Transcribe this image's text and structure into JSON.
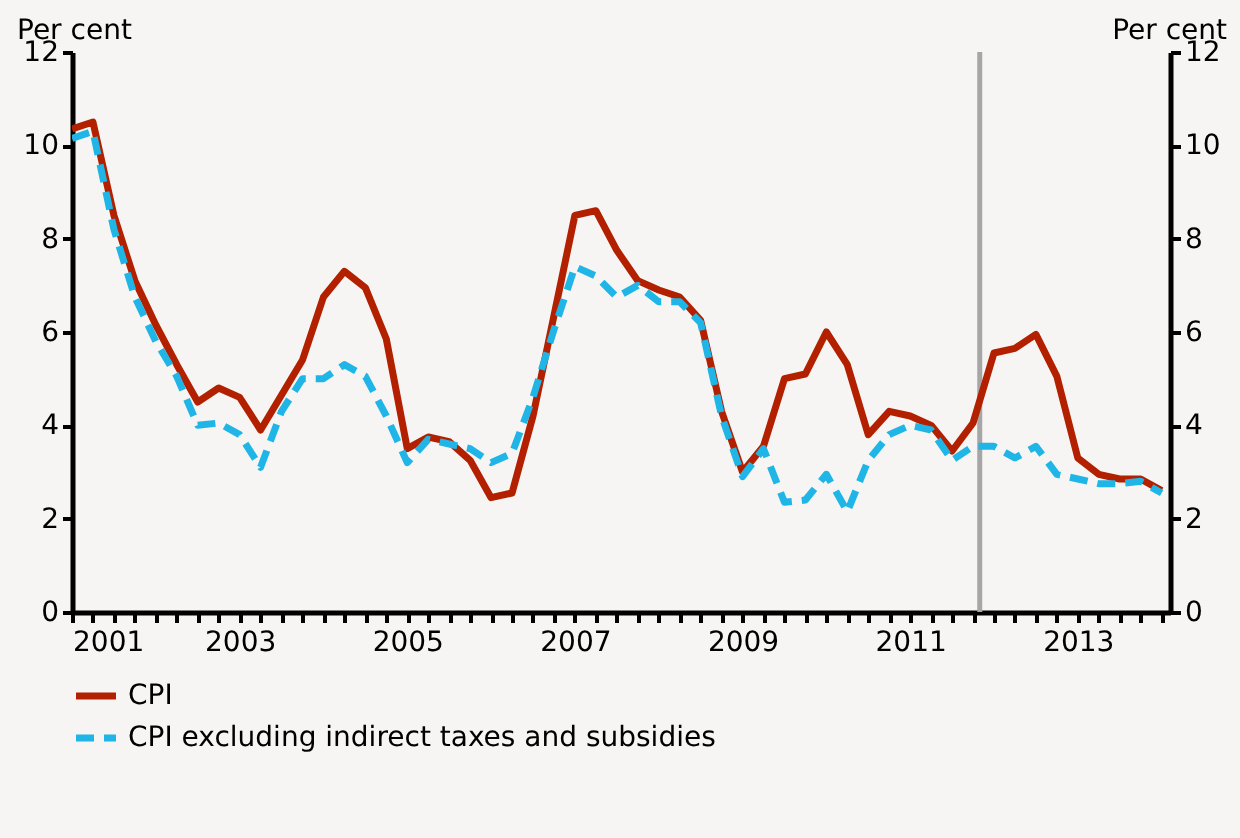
{
  "chart_data": {
    "type": "line",
    "ylabel": "Per cent",
    "y2label": "Per cent",
    "x": [
      2001,
      2001.25,
      2001.5,
      2001.75,
      2002,
      2002.25,
      2002.5,
      2002.75,
      2003,
      2003.25,
      2003.5,
      2003.75,
      2004,
      2004.25,
      2004.5,
      2004.75,
      2005,
      2005.25,
      2005.5,
      2005.75,
      2006,
      2006.25,
      2006.5,
      2006.75,
      2007,
      2007.25,
      2007.5,
      2007.75,
      2008,
      2008.25,
      2008.5,
      2008.75,
      2009,
      2009.25,
      2009.5,
      2009.75,
      2010,
      2010.25,
      2010.5,
      2010.75,
      2011,
      2011.25,
      2011.5,
      2011.75,
      2012,
      2012.25,
      2012.5,
      2012.75,
      2013,
      2013.25,
      2013.5,
      2013.75,
      2014
    ],
    "series": [
      {
        "name": "CPI",
        "color": "#b22000",
        "line_style": "solid",
        "values": [
          10.35,
          10.5,
          8.5,
          7.1,
          6.15,
          5.3,
          4.5,
          4.8,
          4.6,
          3.9,
          4.65,
          5.4,
          6.75,
          7.3,
          6.95,
          5.85,
          3.5,
          3.75,
          3.65,
          3.25,
          2.45,
          2.55,
          4.2,
          6.35,
          8.5,
          8.6,
          7.75,
          7.1,
          6.9,
          6.75,
          6.25,
          4.3,
          3.0,
          3.55,
          5.0,
          5.1,
          6.0,
          5.3,
          3.8,
          4.3,
          4.2,
          4.0,
          3.45,
          4.05,
          5.55,
          5.65,
          5.95,
          5.05,
          3.3,
          2.95,
          2.85,
          2.85,
          2.6
        ]
      },
      {
        "name": "CPI excluding indirect taxes and subsidies",
        "color": "#1fb5e6",
        "line_style": "dashed",
        "values": [
          10.15,
          10.3,
          8.2,
          6.75,
          5.8,
          5.05,
          4.0,
          4.05,
          3.8,
          3.1,
          4.3,
          5.0,
          5.0,
          5.3,
          5.05,
          4.2,
          3.2,
          3.7,
          3.6,
          3.5,
          3.2,
          3.4,
          4.6,
          6.05,
          7.4,
          7.2,
          6.75,
          7.0,
          6.65,
          6.65,
          6.2,
          4.2,
          2.9,
          3.5,
          2.35,
          2.4,
          2.95,
          2.15,
          3.25,
          3.8,
          4.0,
          3.9,
          3.25,
          3.55,
          3.55,
          3.3,
          3.55,
          2.95,
          2.85,
          2.75,
          2.75,
          2.8,
          2.55
        ]
      }
    ],
    "xlim": [
      2001,
      2014.1
    ],
    "xticks": [
      2001,
      {
        "value": 2001.25,
        "label": null
      },
      {
        "value": 2001.5,
        "label": null
      },
      {
        "value": 2001.75,
        "label": null
      },
      {
        "value": 2002,
        "label": null
      },
      {
        "value": 2002.25,
        "label": null
      },
      {
        "value": 2002.5,
        "label": null
      },
      {
        "value": 2002.75,
        "label": null
      },
      2003,
      {
        "value": 2003.25,
        "label": null
      },
      {
        "value": 2003.5,
        "label": null
      },
      {
        "value": 2003.75,
        "label": null
      },
      {
        "value": 2004,
        "label": null
      },
      {
        "value": 2004.25,
        "label": null
      },
      {
        "value": 2004.5,
        "label": null
      },
      {
        "value": 2004.75,
        "label": null
      },
      2005,
      {
        "value": 2005.25,
        "label": null
      },
      {
        "value": 2005.5,
        "label": null
      },
      {
        "value": 2005.75,
        "label": null
      },
      {
        "value": 2006,
        "label": null
      },
      {
        "value": 2006.25,
        "label": null
      },
      {
        "value": 2006.5,
        "label": null
      },
      {
        "value": 2006.75,
        "label": null
      },
      2007,
      {
        "value": 2007.25,
        "label": null
      },
      {
        "value": 2007.5,
        "label": null
      },
      {
        "value": 2007.75,
        "label": null
      },
      {
        "value": 2008,
        "label": null
      },
      {
        "value": 2008.25,
        "label": null
      },
      {
        "value": 2008.5,
        "label": null
      },
      {
        "value": 2008.75,
        "label": null
      },
      2009,
      {
        "value": 2009.25,
        "label": null
      },
      {
        "value": 2009.5,
        "label": null
      },
      {
        "value": 2009.75,
        "label": null
      },
      {
        "value": 2010,
        "label": null
      },
      {
        "value": 2010.25,
        "label": null
      },
      {
        "value": 2010.5,
        "label": null
      },
      {
        "value": 2010.75,
        "label": null
      },
      2011,
      {
        "value": 2011.25,
        "label": null
      },
      {
        "value": 2011.5,
        "label": null
      },
      {
        "value": 2011.75,
        "label": null
      },
      {
        "value": 2012,
        "label": null
      },
      {
        "value": 2012.25,
        "label": null
      },
      {
        "value": 2012.5,
        "label": null
      },
      {
        "value": 2012.75,
        "label": null
      },
      2013,
      {
        "value": 2013.25,
        "label": null
      },
      {
        "value": 2013.5,
        "label": null
      },
      {
        "value": 2013.75,
        "label": null
      },
      {
        "value": 2014,
        "label": null
      }
    ],
    "ylim": [
      0,
      12
    ],
    "yticks": [
      0,
      2,
      4,
      6,
      8,
      10,
      12
    ],
    "y2lim": [
      0,
      12
    ],
    "y2ticks": [
      0,
      2,
      4,
      6,
      8,
      10,
      12
    ],
    "ref_lines": [
      {
        "axis": "x",
        "value": 2011.83,
        "color": "#a6a6a6"
      }
    ],
    "grid": false,
    "legend": "bottom"
  }
}
